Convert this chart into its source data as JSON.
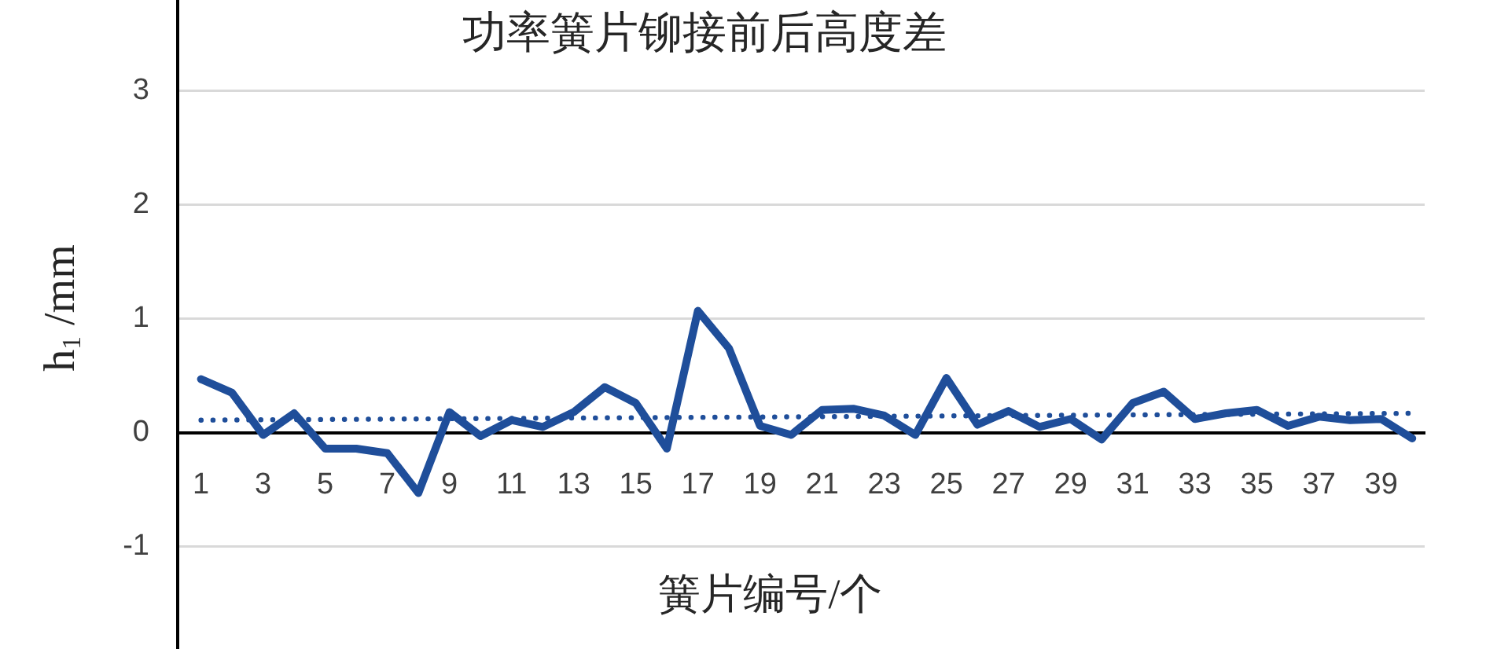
{
  "chart_data": {
    "type": "line",
    "title": "功率簧片铆接前后高度差",
    "xlabel": "簧片编号/个",
    "ylabel": "h$_{1}$ /mm",
    "x": [
      1,
      2,
      3,
      4,
      5,
      6,
      7,
      8,
      9,
      10,
      11,
      12,
      13,
      14,
      15,
      16,
      17,
      18,
      19,
      20,
      21,
      22,
      23,
      24,
      25,
      26,
      27,
      28,
      29,
      30,
      31,
      32,
      33,
      34,
      35,
      36,
      37,
      38,
      39,
      40
    ],
    "xlim": [
      0.25,
      40.4
    ],
    "xticks": [
      1,
      3,
      5,
      7,
      9,
      11,
      13,
      15,
      17,
      19,
      21,
      23,
      25,
      27,
      29,
      31,
      33,
      35,
      37,
      39
    ],
    "ylim": [
      -1.9,
      3.8
    ],
    "yticks": [
      -1,
      0,
      1,
      2,
      3
    ],
    "grid": "y",
    "marker": "none",
    "line_style": "solid",
    "series": [
      {
        "color": "#1f4e9a",
        "values": [
          0.47,
          0.35,
          -0.02,
          0.17,
          -0.14,
          -0.14,
          -0.18,
          -0.53,
          0.18,
          -0.03,
          0.11,
          0.05,
          0.18,
          0.4,
          0.26,
          -0.14,
          1.07,
          0.74,
          0.06,
          -0.02,
          0.2,
          0.21,
          0.15,
          -0.02,
          0.48,
          0.07,
          0.19,
          0.05,
          0.12,
          -0.06,
          0.26,
          0.36,
          0.12,
          0.17,
          0.2,
          0.06,
          0.14,
          0.11,
          0.12,
          -0.05
        ]
      },
      {
        "type": "line",
        "color": "#1f4e9a",
        "x": [
          1,
          40
        ],
        "values": [
          0.11,
          0.17
        ],
        "line_style": "dotted"
      }
    ]
  }
}
